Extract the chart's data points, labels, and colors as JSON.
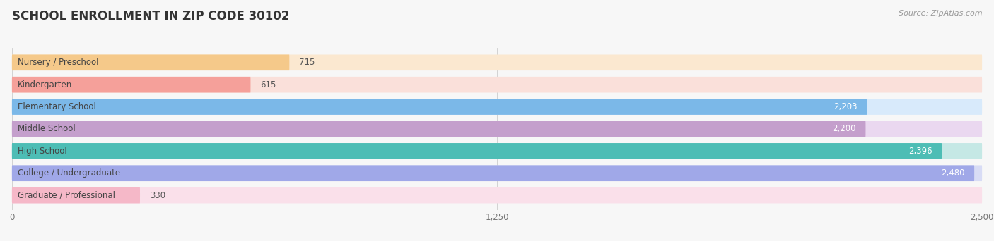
{
  "title": "SCHOOL ENROLLMENT IN ZIP CODE 30102",
  "source": "Source: ZipAtlas.com",
  "categories": [
    "Nursery / Preschool",
    "Kindergarten",
    "Elementary School",
    "Middle School",
    "High School",
    "College / Undergraduate",
    "Graduate / Professional"
  ],
  "values": [
    715,
    615,
    2203,
    2200,
    2396,
    2480,
    330
  ],
  "bar_colors": [
    "#F5C98A",
    "#F5A09A",
    "#7BB8E8",
    "#C49FCC",
    "#4DBDB5",
    "#A0A8E8",
    "#F5B8C8"
  ],
  "bar_bg_colors": [
    "#FBE8D0",
    "#FAE0DA",
    "#D8EAFB",
    "#EAD8F0",
    "#C5E8E5",
    "#D8DCF5",
    "#FAE0EA"
  ],
  "xlim": [
    0,
    2500
  ],
  "xticks": [
    0,
    1250,
    2500
  ],
  "title_fontsize": 12,
  "label_fontsize": 8.5,
  "value_fontsize": 8.5,
  "background_color": "#f7f7f7"
}
